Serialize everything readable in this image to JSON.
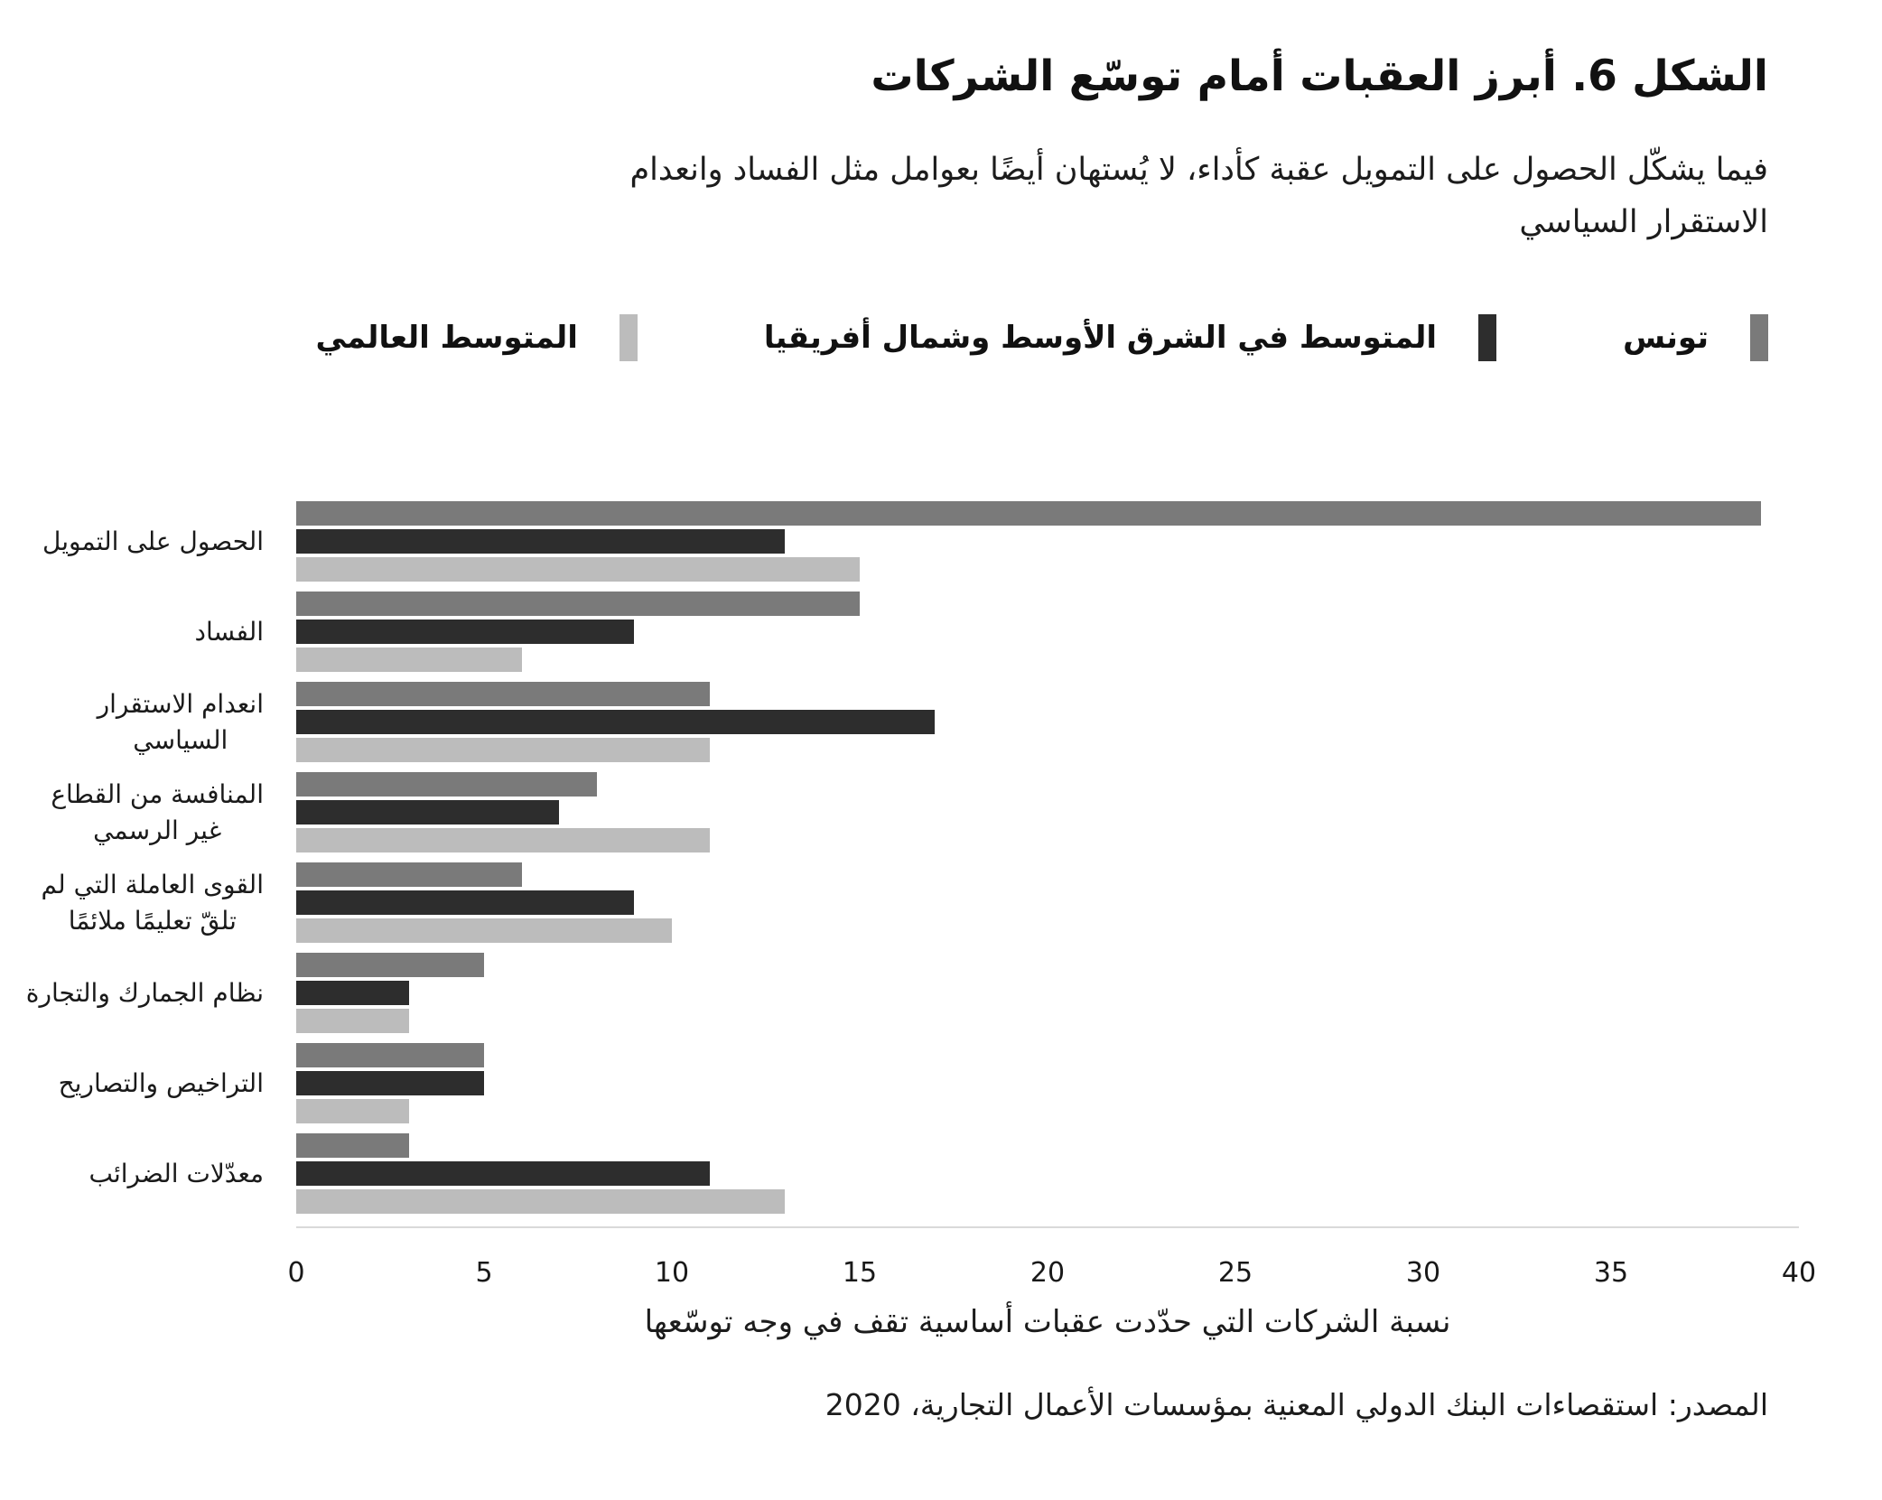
{
  "figure": {
    "title": "الشكل 6. أبرز العقبات أمام توسّع الشركات",
    "subtitle_line1": "فيما يشكّل الحصول على التمويل عقبة كأداء، لا يُستهان أيضًا بعوامل مثل الفساد وانعدام",
    "subtitle_line2": "الاستقرار السياسي",
    "source": "المصدر: استقصاءات البنك الدولي المعنية بمؤسسات الأعمال التجارية، 2020"
  },
  "legend": [
    {
      "label": "تونس",
      "color": "#7a7a7a"
    },
    {
      "label": "المتوسط في الشرق الأوسط وشمال أفريقيا",
      "color": "#2d2d2d"
    },
    {
      "label": "المتوسط العالمي",
      "color": "#bcbcbc"
    }
  ],
  "chart_data": {
    "type": "bar",
    "orientation": "horizontal",
    "title": "الشكل 6. أبرز العقبات أمام توسّع الشركات",
    "xlabel": "نسبة الشركات التي حدّدت عقبات أساسية تقف في وجه توسّعها",
    "xlim": [
      0,
      40
    ],
    "x_ticks": [
      0,
      5,
      10,
      15,
      20,
      25,
      30,
      35,
      40
    ],
    "grid": false,
    "legend_position": "top",
    "categories": [
      "الحصول على التمويل",
      "الفساد",
      "انعدام الاستقرار\nالسياسي",
      "المنافسة من القطاع\nغير الرسمي",
      "القوى العاملة التي لم\nتلقّ تعليمًا ملائمًا",
      "نظام الجمارك والتجارة",
      "التراخيص والتصاريح",
      "معدّلات الضرائب"
    ],
    "series": [
      {
        "name": "تونس",
        "color": "#7a7a7a",
        "values": [
          39,
          15,
          11,
          8,
          6,
          5,
          5,
          3
        ]
      },
      {
        "name": "المتوسط في الشرق الأوسط وشمال أفريقيا",
        "color": "#2d2d2d",
        "values": [
          13,
          9,
          17,
          7,
          9,
          3,
          5,
          11
        ]
      },
      {
        "name": "المتوسط العالمي",
        "color": "#bcbcbc",
        "values": [
          15,
          6,
          11,
          11,
          10,
          3,
          3,
          13
        ]
      }
    ]
  }
}
